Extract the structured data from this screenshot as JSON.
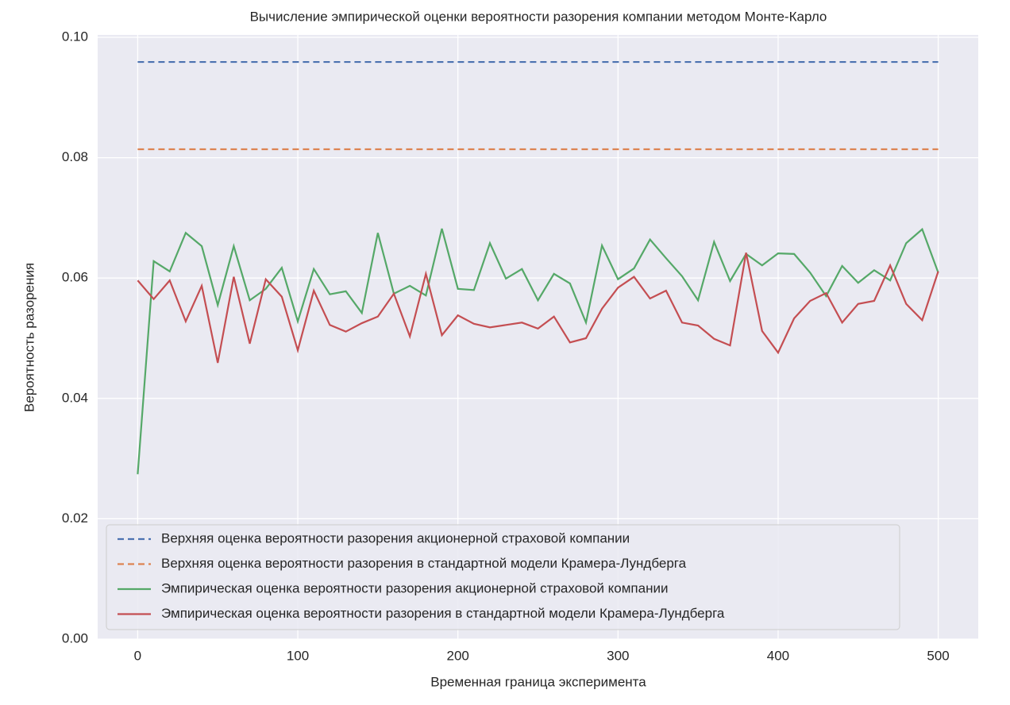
{
  "chart_data": {
    "type": "line",
    "title": "Вычисление эмпирической оценки вероятности разорения компании методом Монте-Карло",
    "xlabel": "Временная граница эксперимента",
    "ylabel": "Вероятность разорения",
    "x": [
      0,
      10,
      20,
      30,
      40,
      50,
      60,
      70,
      80,
      90,
      100,
      110,
      120,
      130,
      140,
      150,
      160,
      170,
      180,
      190,
      200,
      210,
      220,
      230,
      240,
      250,
      260,
      270,
      280,
      290,
      300,
      310,
      320,
      330,
      340,
      350,
      360,
      370,
      380,
      390,
      400,
      410,
      420,
      430,
      440,
      450,
      460,
      470,
      480,
      490,
      500
    ],
    "series": [
      {
        "name": "Верхняя оценка вероятности разорения акционерной страховой компании",
        "color": "#4c72b0",
        "linestyle": "dashed",
        "values": [
          0.0959,
          0.0959,
          0.0959,
          0.0959,
          0.0959,
          0.0959,
          0.0959,
          0.0959,
          0.0959,
          0.0959,
          0.0959,
          0.0959,
          0.0959,
          0.0959,
          0.0959,
          0.0959,
          0.0959,
          0.0959,
          0.0959,
          0.0959,
          0.0959,
          0.0959,
          0.0959,
          0.0959,
          0.0959,
          0.0959,
          0.0959,
          0.0959,
          0.0959,
          0.0959,
          0.0959,
          0.0959,
          0.0959,
          0.0959,
          0.0959,
          0.0959,
          0.0959,
          0.0959,
          0.0959,
          0.0959,
          0.0959,
          0.0959,
          0.0959,
          0.0959,
          0.0959,
          0.0959,
          0.0959,
          0.0959,
          0.0959,
          0.0959,
          0.0959
        ]
      },
      {
        "name": "Верхняя оценка вероятности разорения в стандартной модели Крамера-Лундберга",
        "color": "#dd8452",
        "linestyle": "dashed",
        "values": [
          0.0814,
          0.0814,
          0.0814,
          0.0814,
          0.0814,
          0.0814,
          0.0814,
          0.0814,
          0.0814,
          0.0814,
          0.0814,
          0.0814,
          0.0814,
          0.0814,
          0.0814,
          0.0814,
          0.0814,
          0.0814,
          0.0814,
          0.0814,
          0.0814,
          0.0814,
          0.0814,
          0.0814,
          0.0814,
          0.0814,
          0.0814,
          0.0814,
          0.0814,
          0.0814,
          0.0814,
          0.0814,
          0.0814,
          0.0814,
          0.0814,
          0.0814,
          0.0814,
          0.0814,
          0.0814,
          0.0814,
          0.0814,
          0.0814,
          0.0814,
          0.0814,
          0.0814,
          0.0814,
          0.0814,
          0.0814,
          0.0814,
          0.0814,
          0.0814
        ]
      },
      {
        "name": "Эмпирическая оценка вероятности разорения акционерной страховой компании",
        "color": "#55a868",
        "linestyle": "solid",
        "values": [
          0.0274,
          0.0628,
          0.0611,
          0.0675,
          0.0653,
          0.0555,
          0.0653,
          0.0563,
          0.0582,
          0.0617,
          0.0528,
          0.0615,
          0.0573,
          0.0578,
          0.0542,
          0.0675,
          0.0574,
          0.0587,
          0.0571,
          0.0682,
          0.0582,
          0.058,
          0.0658,
          0.0599,
          0.0615,
          0.0563,
          0.0607,
          0.0591,
          0.0526,
          0.0654,
          0.0598,
          0.0616,
          0.0664,
          0.0633,
          0.0603,
          0.0563,
          0.066,
          0.0595,
          0.064,
          0.0621,
          0.0641,
          0.064,
          0.0609,
          0.057,
          0.062,
          0.0592,
          0.0613,
          0.0596,
          0.0658,
          0.0681,
          0.0609
        ]
      },
      {
        "name": "Эмпирическая оценка вероятности разорения в стандартной модели Крамера-Лундберга",
        "color": "#c44e52",
        "linestyle": "solid",
        "values": [
          0.0596,
          0.0565,
          0.0596,
          0.0528,
          0.0587,
          0.0459,
          0.0602,
          0.0491,
          0.0598,
          0.0569,
          0.048,
          0.0579,
          0.0522,
          0.0511,
          0.0525,
          0.0536,
          0.0574,
          0.0503,
          0.0607,
          0.0505,
          0.0538,
          0.0524,
          0.0518,
          0.0522,
          0.0526,
          0.0516,
          0.0536,
          0.0493,
          0.05,
          0.0549,
          0.0584,
          0.0602,
          0.0566,
          0.0579,
          0.0526,
          0.0521,
          0.0499,
          0.0488,
          0.0642,
          0.0512,
          0.0476,
          0.0533,
          0.0562,
          0.0575,
          0.0526,
          0.0557,
          0.0562,
          0.0621,
          0.0557,
          0.053,
          0.0611
        ]
      }
    ],
    "xlim": [
      -25,
      525
    ],
    "xticks": [
      0,
      100,
      200,
      300,
      400,
      500
    ],
    "ylim": [
      0,
      0.1
    ],
    "yticks": [
      {
        "value": 0,
        "label": "0.00"
      },
      0.02,
      0.04,
      0.06,
      0.08,
      {
        "value": 0.1,
        "label": "0.10"
      }
    ],
    "grid": true,
    "legend": "lower left"
  }
}
